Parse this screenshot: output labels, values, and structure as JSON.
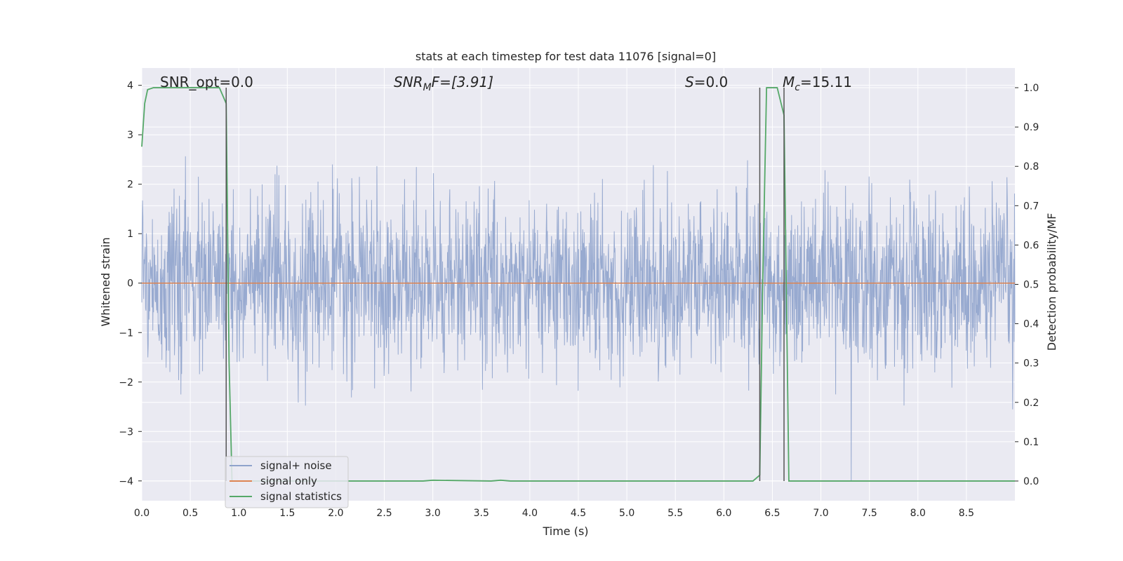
{
  "chart_data": {
    "type": "line",
    "title": "stats at each timestep for test data 11076 [signal=0]",
    "xlabel": "Time (s)",
    "ylabel": "Whitened strain",
    "y2label": "Detection probability/MF",
    "xlim": [
      0.0,
      9.0
    ],
    "ylim": [
      -4.4,
      4.35
    ],
    "y2lim": [
      -0.05,
      1.05
    ],
    "xticks": [
      "0.0",
      "0.5",
      "1.0",
      "1.5",
      "2.0",
      "2.5",
      "3.0",
      "3.5",
      "4.0",
      "4.5",
      "5.0",
      "5.5",
      "6.0",
      "6.5",
      "7.0",
      "7.5",
      "8.0",
      "8.5"
    ],
    "yticks": [
      "4",
      "3",
      "2",
      "1",
      "0",
      "−1",
      "−2",
      "−3",
      "−4"
    ],
    "y2ticks": [
      "1.0",
      "0.9",
      "0.8",
      "0.7",
      "0.6",
      "0.5",
      "0.4",
      "0.3",
      "0.2",
      "0.1",
      "0.0"
    ],
    "grid": true,
    "legend_position": "lower-left",
    "annotations": {
      "snr_opt": "SNR_opt=0.0",
      "snr_mf_main": "SNR",
      "snr_mf_sub": "M",
      "snr_mf_rest": "F=[3.91]",
      "s_main": "S",
      "s_rest": "=0.0",
      "mc_main": "M",
      "mc_sub": "c",
      "mc_rest": "=15.11"
    },
    "vertical_lines_x": [
      0.87,
      6.37,
      6.62
    ],
    "series": [
      {
        "name": "signal+ noise",
        "color": "#8fa3cc",
        "description_values": "noise trace, approx range -4 to 4",
        "noise_sd": 0.85,
        "sample_count": 2300
      },
      {
        "name": "signal only",
        "color": "#dd8452",
        "values": [
          [
            0.0,
            0.0
          ],
          [
            9.0,
            0.0
          ]
        ]
      },
      {
        "name": "signal statistics",
        "color": "#55a868",
        "axis": "right",
        "points": [
          [
            0.0,
            0.85
          ],
          [
            0.03,
            0.96
          ],
          [
            0.06,
            0.995
          ],
          [
            0.12,
            1.0
          ],
          [
            0.8,
            1.0
          ],
          [
            0.87,
            0.96
          ],
          [
            0.9,
            0.3
          ],
          [
            0.93,
            0.0
          ],
          [
            2.9,
            0.0
          ],
          [
            3.0,
            0.002
          ],
          [
            3.6,
            0.0
          ],
          [
            3.7,
            0.002
          ],
          [
            3.8,
            0.0
          ],
          [
            6.3,
            0.0
          ],
          [
            6.37,
            0.015
          ],
          [
            6.4,
            0.5
          ],
          [
            6.44,
            1.0
          ],
          [
            6.55,
            1.0
          ],
          [
            6.62,
            0.93
          ],
          [
            6.67,
            0.0
          ],
          [
            9.0,
            0.0
          ]
        ]
      }
    ]
  },
  "legend": {
    "items": [
      {
        "label": "signal+ noise",
        "color": "#8fa3cc"
      },
      {
        "label": "signal only",
        "color": "#dd8452"
      },
      {
        "label": "signal statistics",
        "color": "#55a868"
      }
    ]
  },
  "colors": {
    "plot_bg": "#eaeaf2",
    "grid": "#ffffff",
    "vline": "#555555"
  }
}
